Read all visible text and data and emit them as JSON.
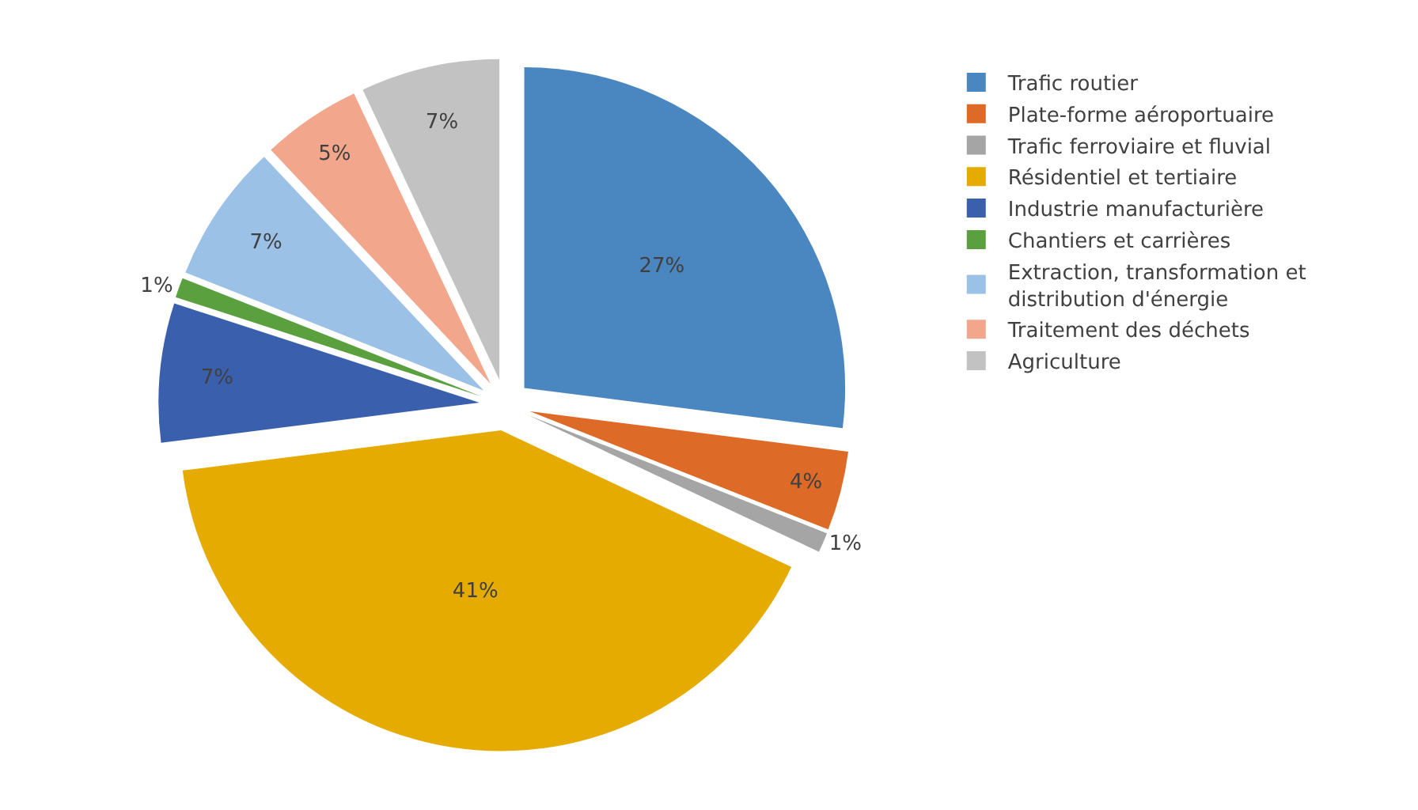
{
  "chart_data": {
    "type": "pie",
    "categories": [
      "Trafic routier",
      "Plate-forme aéroportuaire",
      "Trafic ferroviaire et fluvial",
      "Résidentiel et tertiaire",
      "Industrie manufacturière",
      "Chantiers et carrières",
      "Extraction, transformation et distribution d'énergie",
      "Traitement des déchets",
      "Agriculture"
    ],
    "values": [
      27,
      4,
      1,
      41,
      7,
      1,
      7,
      5,
      7
    ],
    "value_labels": [
      "27%",
      "4%",
      "1%",
      "41%",
      "7%",
      "1%",
      "7%",
      "5%",
      "7%"
    ],
    "colors": [
      "#4a86c0",
      "#dd6a26",
      "#a5a5a5",
      "#e6ab00",
      "#3a60ad",
      "#5ba03f",
      "#9cc1e6",
      "#f2a68c",
      "#c2c2c2"
    ],
    "legend": "right"
  }
}
